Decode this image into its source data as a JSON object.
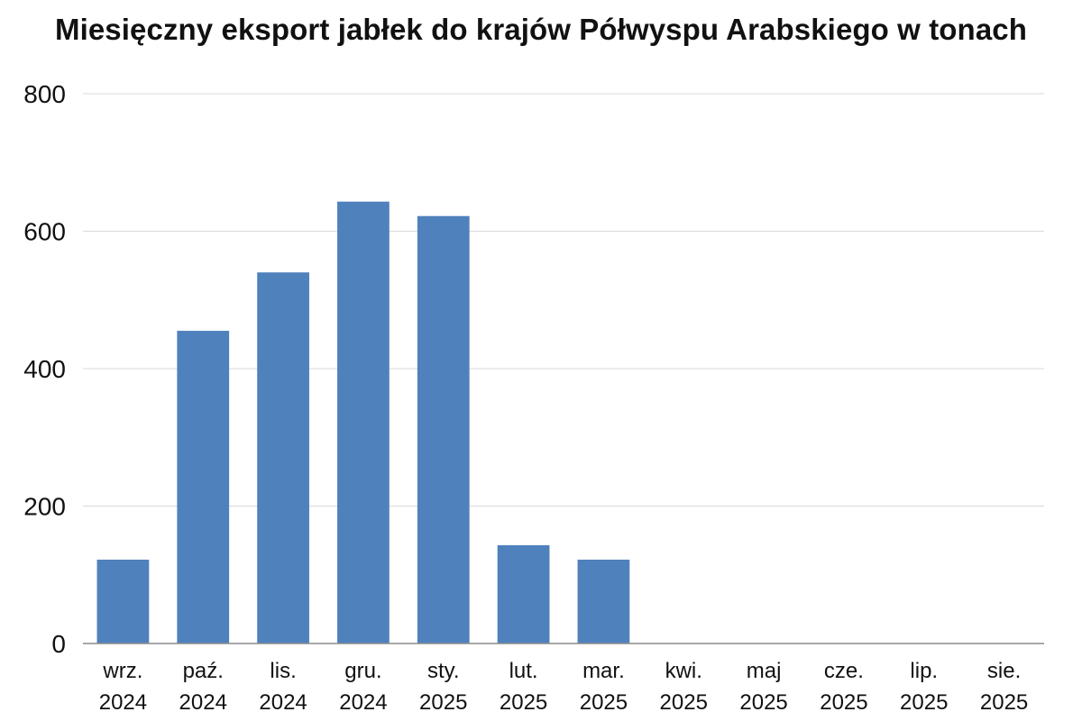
{
  "chart_data": {
    "type": "bar",
    "title": "Miesięczny eksport jabłek do krajów Półwyspu Arabskiego w tonach",
    "xlabel": "",
    "ylabel": "",
    "categories": [
      [
        "wrz.",
        "2024"
      ],
      [
        "paź.",
        "2024"
      ],
      [
        "lis.",
        "2024"
      ],
      [
        "gru.",
        "2024"
      ],
      [
        "sty.",
        "2025"
      ],
      [
        "lut.",
        "2025"
      ],
      [
        "mar.",
        "2025"
      ],
      [
        "kwi.",
        "2025"
      ],
      [
        "maj",
        "2025"
      ],
      [
        "cze.",
        "2025"
      ],
      [
        "lip.",
        "2025"
      ],
      [
        "sie.",
        "2025"
      ]
    ],
    "values": [
      122,
      455,
      540,
      643,
      622,
      143,
      122,
      0,
      0,
      0,
      0,
      0
    ],
    "ylim": [
      0,
      800
    ],
    "yticks": [
      0,
      200,
      400,
      600,
      800
    ],
    "grid": true,
    "bar_color": "#4f81bd",
    "grid_color": "#d9d9d9",
    "axis_color": "#8c8c8c"
  }
}
